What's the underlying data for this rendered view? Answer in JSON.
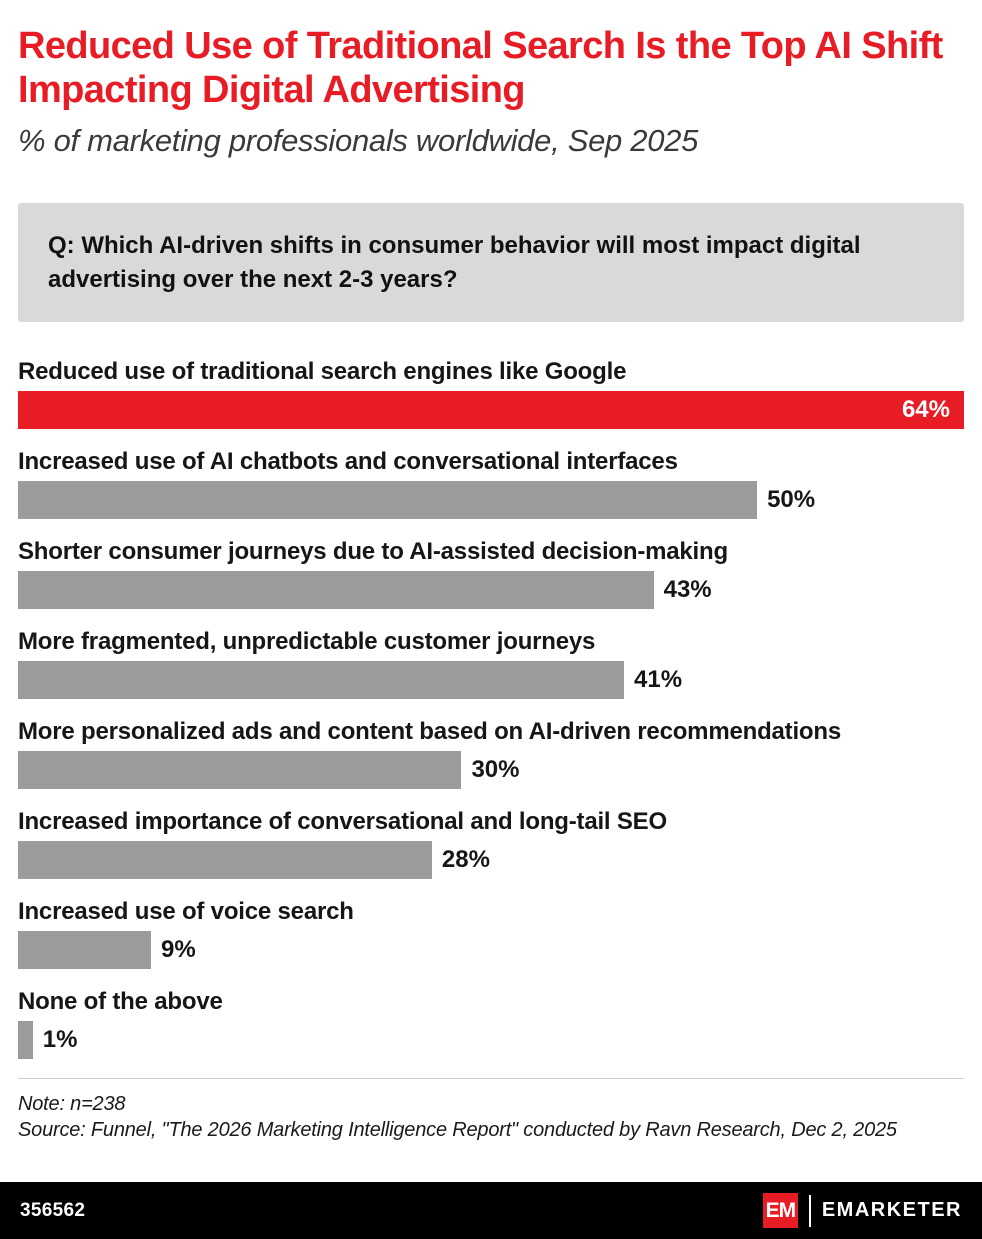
{
  "header": {
    "title": "Reduced Use of Traditional Search Is the Top AI Shift Impacting Digital Advertising",
    "subtitle": "% of marketing professionals worldwide, Sep 2025"
  },
  "question": "Q: Which AI-driven shifts in consumer behavior will most impact digital advertising over the next 2-3 years?",
  "chart_data": {
    "type": "bar",
    "orientation": "horizontal",
    "title": "Reduced Use of Traditional Search Is the Top AI Shift Impacting Digital Advertising",
    "subtitle": "% of marketing professionals worldwide, Sep 2025",
    "categories": [
      "Reduced use of traditional search engines like Google",
      "Increased use of AI chatbots and conversational interfaces",
      "Shorter consumer journeys due to AI-assisted decision-making",
      "More fragmented, unpredictable customer journeys",
      "More personalized ads and content based on AI-driven recommendations",
      "Increased importance of conversational and long-tail SEO",
      "Increased use of voice search",
      "None of the above"
    ],
    "values": [
      64,
      50,
      43,
      41,
      30,
      28,
      9,
      1
    ],
    "value_labels": [
      "64%",
      "50%",
      "43%",
      "41%",
      "30%",
      "28%",
      "9%",
      "1%"
    ],
    "unit": "%",
    "xlim": [
      0,
      64
    ],
    "grid": false,
    "legend": "none",
    "highlight_index": 0,
    "colors": {
      "highlight": "#e81c24",
      "default": "#9b9b9b"
    }
  },
  "footer": {
    "note": "Note: n=238",
    "source": "Source: Funnel, \"The 2026 Marketing Intelligence Report\" conducted by Ravn Research, Dec 2, 2025",
    "chart_id": "356562",
    "brand": "EMARKETER",
    "logo_mark": "EM"
  }
}
